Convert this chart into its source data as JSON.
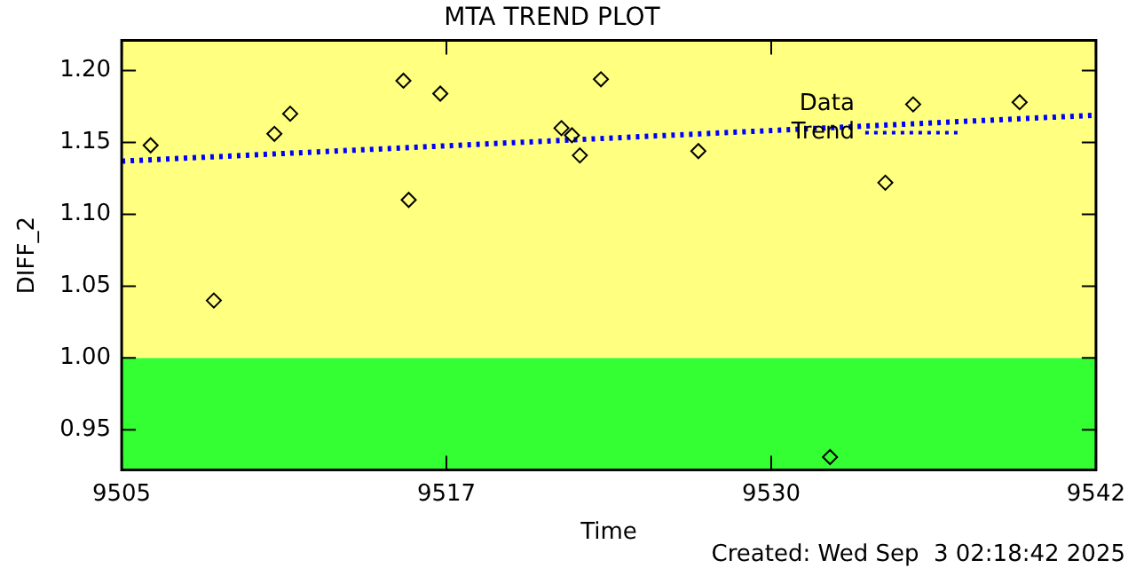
{
  "chart_data": {
    "type": "scatter",
    "title": "MTA TREND PLOT",
    "xlabel": "Time",
    "ylabel": "DIFF_2",
    "annotations": [
      "Created: Wed Sep  3 02:18:42 2025"
    ],
    "xlim": [
      9505,
      9542
    ],
    "xticks": [
      9505,
      {
        "value": 9517.333,
        "label": "9517"
      },
      {
        "value": 9529.667,
        "label": "9530"
      },
      9542
    ],
    "ylim": [
      0.922,
      1.221
    ],
    "yticks": [
      {
        "value": 0.95,
        "label": "0.95"
      },
      {
        "value": 1.0,
        "label": "1.00"
      },
      {
        "value": 1.05,
        "label": "1.05"
      },
      {
        "value": 1.1,
        "label": "1.10"
      },
      {
        "value": 1.15,
        "label": "1.15"
      },
      {
        "value": 1.2,
        "label": "1.20"
      }
    ],
    "grid": false,
    "legend": "top right",
    "bands": [
      {
        "axis": "y",
        "from": 0.922,
        "to": 1.0,
        "color": "#33ff33"
      },
      {
        "axis": "y",
        "from": 1.0,
        "to": 1.221,
        "color": "#ffff80"
      }
    ],
    "series": [
      {
        "name": "Data",
        "color": "#000000",
        "marker": "diamond",
        "x": [
          9506.1,
          9508.5,
          9510.8,
          9511.4,
          9515.7,
          9515.9,
          9517.1,
          9521.7,
          9522.1,
          9522.4,
          9523.2,
          9526.9,
          9531.9,
          9534.0,
          9539.1
        ],
        "values": [
          1.148,
          1.04,
          1.156,
          1.17,
          1.193,
          1.11,
          1.184,
          1.16,
          1.155,
          1.141,
          1.194,
          1.144,
          0.931,
          1.122,
          1.178
        ]
      },
      {
        "name": "Trend",
        "type": "line",
        "color": "#0000ff",
        "line_style": "dotted",
        "marker": "none",
        "x": [
          9505,
          9542
        ],
        "values": [
          1.137,
          1.169
        ]
      }
    ]
  }
}
